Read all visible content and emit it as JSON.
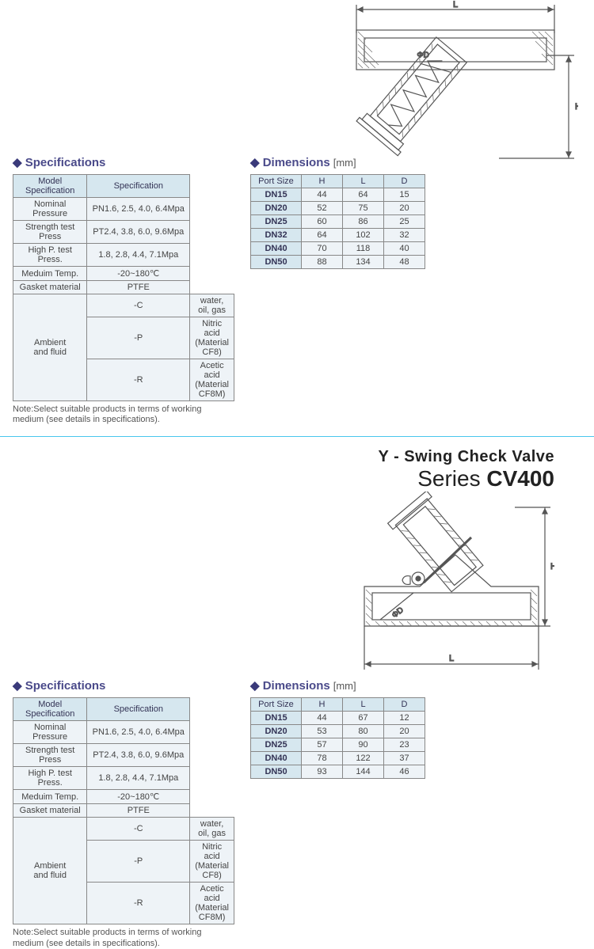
{
  "sec1": {
    "spec_heading": "Specifications",
    "dim_heading": "Dimensions",
    "dim_unit": "[mm]",
    "spec_cols": [
      "Model\nSpecification",
      "Specification"
    ],
    "spec_rows": [
      {
        "k": "Nominal Pressure",
        "v": "PN1.6, 2.5, 4.0, 6.4Mpa"
      },
      {
        "k": "Strength test Press",
        "v": "PT2.4, 3.8, 6.0, 9.6Mpa"
      },
      {
        "k": "High P. test Press.",
        "v": "1.8, 2.8, 4.4, 7.1Mpa"
      },
      {
        "k": "Meduim Temp.",
        "v": "-20~180℃"
      },
      {
        "k": "Gasket material",
        "v": "PTFE"
      }
    ],
    "ambient_label": "Ambient\nand fluid",
    "ambient_rows": [
      {
        "k": "-C",
        "v": "water, oil, gas"
      },
      {
        "k": "-P",
        "v": "Nitric acid (Material CF8)"
      },
      {
        "k": "-R",
        "v": "Acetic acid (Material CF8M)"
      }
    ],
    "note": "Note:Select suitable products in terms of working medium (see details in specifications).",
    "dim_cols": [
      "Port Size",
      "H",
      "L",
      "D"
    ],
    "dim_rows": [
      {
        "port": "DN15",
        "h": "44",
        "l": "64",
        "d": "15"
      },
      {
        "port": "DN20",
        "h": "52",
        "l": "75",
        "d": "20"
      },
      {
        "port": "DN25",
        "h": "60",
        "l": "86",
        "d": "25"
      },
      {
        "port": "DN32",
        "h": "64",
        "l": "102",
        "d": "32"
      },
      {
        "port": "DN40",
        "h": "70",
        "l": "118",
        "d": "40"
      },
      {
        "port": "DN50",
        "h": "88",
        "l": "134",
        "d": "48"
      }
    ]
  },
  "sec2": {
    "title1": "Y - Swing Check Valve",
    "title2_a": "Series ",
    "title2_b": "CV400",
    "spec_heading": "Specifications",
    "dim_heading": "Dimensions",
    "dim_unit": "[mm]",
    "spec_cols": [
      "Model\nSpecification",
      "Specification"
    ],
    "spec_rows": [
      {
        "k": "Nominal Pressure",
        "v": "PN1.6, 2.5, 4.0, 6.4Mpa"
      },
      {
        "k": "Strength test Press",
        "v": "PT2.4, 3.8, 6.0, 9.6Mpa"
      },
      {
        "k": "High P. test Press.",
        "v": "1.8, 2.8, 4.4, 7.1Mpa"
      },
      {
        "k": "Meduim Temp.",
        "v": "-20~180℃"
      },
      {
        "k": "Gasket material",
        "v": "PTFE"
      }
    ],
    "ambient_label": "Ambient\nand fluid",
    "ambient_rows": [
      {
        "k": "-C",
        "v": "water, oil, gas"
      },
      {
        "k": "-P",
        "v": "Nitric acid (Material CF8)"
      },
      {
        "k": "-R",
        "v": "Acetic acid (Material CF8M)"
      }
    ],
    "note": "Note:Select suitable products in terms of working medium (see details in specifications).",
    "dim_cols": [
      "Port Size",
      "H",
      "L",
      "D"
    ],
    "dim_rows": [
      {
        "port": "DN15",
        "h": "44",
        "l": "67",
        "d": "12"
      },
      {
        "port": "DN20",
        "h": "53",
        "l": "80",
        "d": "20"
      },
      {
        "port": "DN25",
        "h": "57",
        "l": "90",
        "d": "23"
      },
      {
        "port": "DN40",
        "h": "78",
        "l": "122",
        "d": "37"
      },
      {
        "port": "DN50",
        "h": "93",
        "l": "144",
        "d": "46"
      }
    ]
  },
  "drawing": {
    "labels": {
      "L": "L",
      "H": "H",
      "D": "ΦD"
    },
    "stroke": "#555555",
    "hatch": "#777777",
    "width1": 300,
    "height1": 220,
    "width2": 260,
    "height2": 230
  }
}
